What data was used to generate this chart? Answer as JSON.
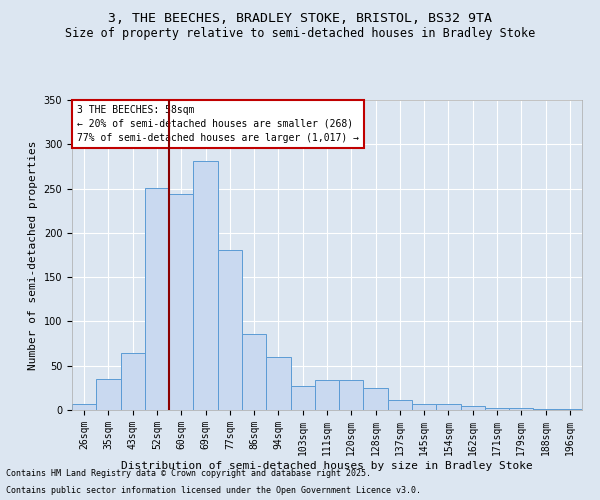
{
  "title_line1": "3, THE BEECHES, BRADLEY STOKE, BRISTOL, BS32 9TA",
  "title_line2": "Size of property relative to semi-detached houses in Bradley Stoke",
  "xlabel": "Distribution of semi-detached houses by size in Bradley Stoke",
  "ylabel": "Number of semi-detached properties",
  "categories": [
    "26sqm",
    "35sqm",
    "43sqm",
    "52sqm",
    "60sqm",
    "69sqm",
    "77sqm",
    "86sqm",
    "94sqm",
    "103sqm",
    "111sqm",
    "120sqm",
    "128sqm",
    "137sqm",
    "145sqm",
    "154sqm",
    "162sqm",
    "171sqm",
    "179sqm",
    "188sqm",
    "196sqm"
  ],
  "values": [
    7,
    35,
    64,
    251,
    244,
    281,
    181,
    86,
    60,
    27,
    34,
    34,
    25,
    11,
    7,
    7,
    4,
    2,
    2,
    1,
    1
  ],
  "bar_color": "#c9d9f0",
  "bar_edge_color": "#5b9bd5",
  "vline_x_index": 4,
  "vline_color": "#8b0000",
  "annotation_title": "3 THE BEECHES: 58sqm",
  "annotation_line1": "← 20% of semi-detached houses are smaller (268)",
  "annotation_line2": "77% of semi-detached houses are larger (1,017) →",
  "annotation_box_color": "#ffffff",
  "annotation_box_edge": "#c00000",
  "ylim": [
    0,
    350
  ],
  "yticks": [
    0,
    50,
    100,
    150,
    200,
    250,
    300,
    350
  ],
  "background_color": "#dce6f1",
  "plot_bg_color": "#dce6f1",
  "footnote_line1": "Contains HM Land Registry data © Crown copyright and database right 2025.",
  "footnote_line2": "Contains public sector information licensed under the Open Government Licence v3.0.",
  "title_fontsize": 9.5,
  "subtitle_fontsize": 8.5,
  "axis_label_fontsize": 8,
  "tick_fontsize": 7,
  "annotation_fontsize": 7,
  "footnote_fontsize": 6
}
